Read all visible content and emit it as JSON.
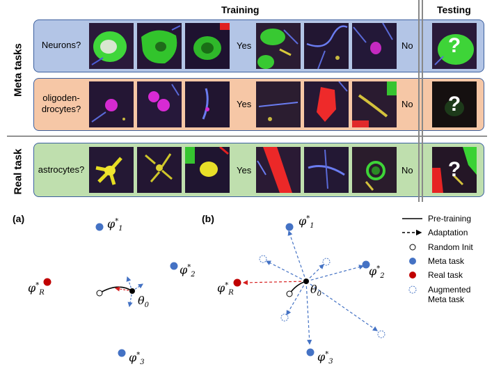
{
  "header": {
    "training": "Training",
    "testing": "Testing"
  },
  "side_labels": {
    "meta": "Meta tasks",
    "real": "Real task"
  },
  "rows": [
    {
      "id": "neurons",
      "label_lines": [
        "Neurons?"
      ],
      "yes": "Yes",
      "no": "No",
      "bg": "#b3c5e6",
      "test_mark": "?"
    },
    {
      "id": "oligo",
      "label_lines": [
        "oligoden-",
        "drocytes?"
      ],
      "yes": "Yes",
      "no": "No",
      "bg": "#f6c7a6",
      "test_mark": "?"
    },
    {
      "id": "astro",
      "label_lines": [
        "astrocytes?"
      ],
      "yes": "Yes",
      "no": "No",
      "bg": "#bfdfae",
      "test_mark": "?"
    }
  ],
  "panel_a": {
    "tag": "(a)",
    "phi1": "1",
    "phi2": "2",
    "phi3": "3",
    "phiR": "R",
    "theta": "0"
  },
  "panel_b": {
    "tag": "(b)",
    "phi1": "1",
    "phi2": "2",
    "phi3": "3",
    "phiR": "R",
    "theta": "0"
  },
  "legend": {
    "items": [
      {
        "label": "Pre-training",
        "icon": "solid-line-icon"
      },
      {
        "label": "Adaptation",
        "icon": "dashed-arrow-icon"
      },
      {
        "label": "Random Init",
        "icon": "hollow-circle-icon"
      },
      {
        "label": "Meta task",
        "icon": "blue-dot-icon"
      },
      {
        "label": "Real task",
        "icon": "red-dot-icon"
      },
      {
        "label": "Augmented",
        "label2": "Meta task",
        "icon": "dotted-circle-icon"
      }
    ]
  },
  "colors": {
    "meta": "#4472c4",
    "real": "#c00000",
    "adapt": "#4472c4",
    "adapt_red": "#d62020"
  }
}
